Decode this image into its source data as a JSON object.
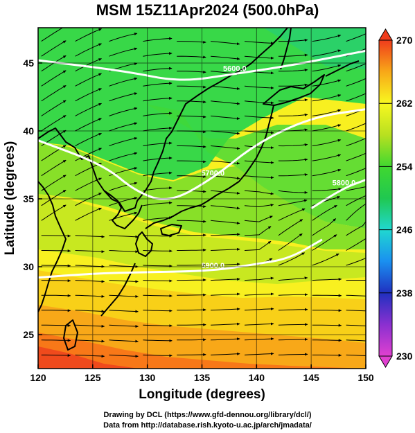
{
  "title": "MSM 15Z11Apr2024 (500.0hPa)",
  "axes": {
    "xlabel": "Longitude (degrees)",
    "ylabel": "Latitude  (degrees)",
    "xlim": [
      120,
      150
    ],
    "ylim": [
      22.5,
      47.6
    ],
    "xticks": [
      "120",
      "125",
      "130",
      "135",
      "140",
      "145",
      "150"
    ],
    "yticks": [
      "25",
      "30",
      "35",
      "40",
      "45"
    ],
    "grid": true
  },
  "colorbar": {
    "range": [
      230,
      270
    ],
    "ticks": [
      "230",
      "238",
      "246",
      "254",
      "262",
      "270"
    ],
    "colors": [
      "#e040d0",
      "#8a30d0",
      "#2030c0",
      "#1a90f0",
      "#20d8d0",
      "#20c850",
      "#40d830",
      "#b8e020",
      "#f8f820",
      "#f8a818",
      "#f03c1c"
    ]
  },
  "contours": [
    {
      "label": "5600.0",
      "lat_at_lon": [
        [
          120,
          45.2
        ],
        [
          128,
          44.4
        ],
        [
          133,
          43.6
        ],
        [
          138,
          44.2
        ],
        [
          143,
          44.8
        ],
        [
          150,
          45.9
        ]
      ]
    },
    {
      "label": "5700.0",
      "lat_at_lon": [
        [
          120,
          39.3
        ],
        [
          126,
          37.5
        ],
        [
          129,
          35.5
        ],
        [
          132,
          34.7
        ],
        [
          136,
          36.5
        ],
        [
          140,
          39.1
        ],
        [
          145,
          41.0
        ],
        [
          150,
          41.6
        ]
      ]
    },
    {
      "label": "5800.0",
      "lat_at_lon": [
        [
          145,
          34.3
        ],
        [
          148,
          35.8
        ],
        [
          150,
          36.4
        ]
      ]
    },
    {
      "label": "5900.0",
      "lat_at_lon": [
        [
          120,
          29.2
        ],
        [
          125,
          29.5
        ],
        [
          130,
          29.6
        ],
        [
          136,
          29.7
        ],
        [
          140,
          30.2
        ],
        [
          143,
          30.6
        ],
        [
          146,
          32.0
        ]
      ]
    }
  ],
  "credits": [
    "Drawing by DCL (https://www.gfd-dennou.org/library/dcl/)",
    "Data from http://database.rish.kyoto-u.ac.jp/arch/jmadata/"
  ]
}
